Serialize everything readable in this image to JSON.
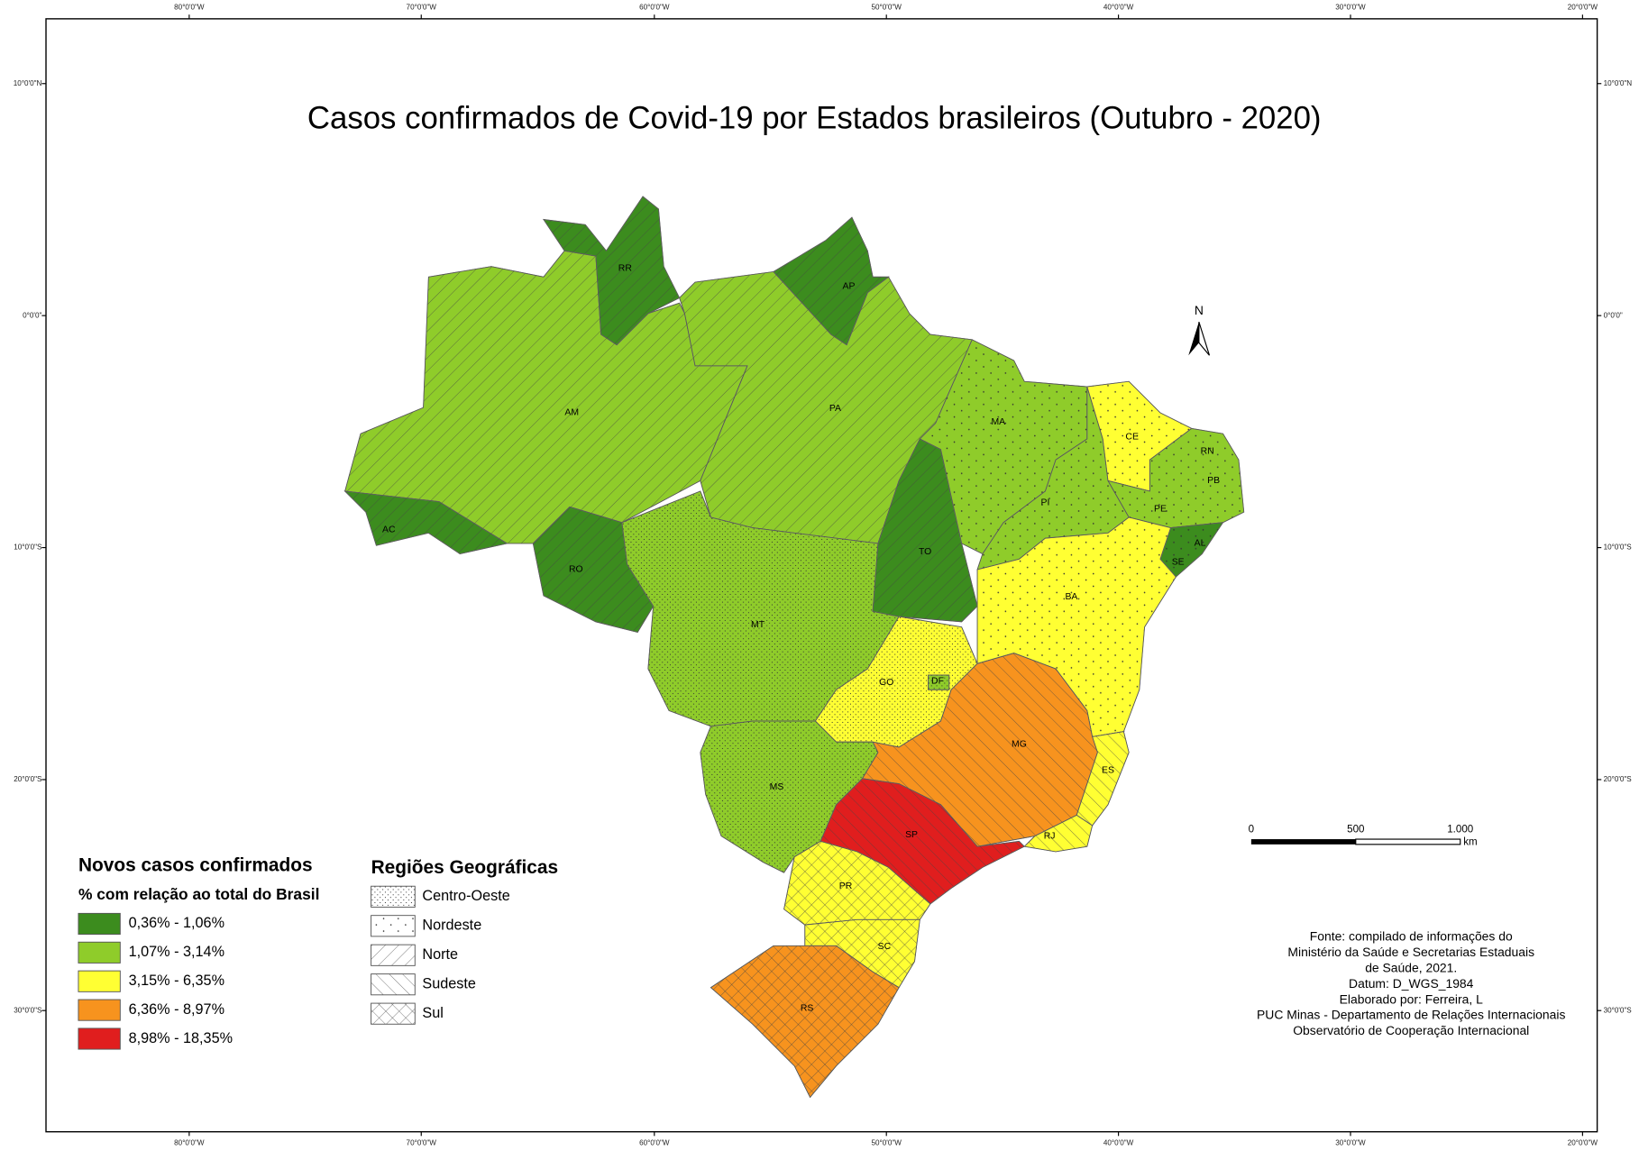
{
  "title": "Casos confirmados de Covid-19 por Estados brasileiros (Outubro - 2020)",
  "graticule": {
    "top": [
      "80°0'0\"W",
      "70°0'0\"W",
      "60°0'0\"W",
      "50°0'0\"W",
      "40°0'0\"W",
      "30°0'0\"W",
      "20°0'0\"W"
    ],
    "bottom": [
      "80°0'0\"W",
      "70°0'0\"W",
      "60°0'0\"W",
      "50°0'0\"W",
      "40°0'0\"W",
      "30°0'0\"W",
      "20°0'0\"W"
    ],
    "left": [
      "10°0'0\"N",
      "0°0'0\"",
      "10°0'0\"S",
      "20°0'0\"S",
      "30°0'0\"S"
    ],
    "right": [
      "10°0'0\"N",
      "0°0'0\"",
      "10°0'0\"S",
      "20°0'0\"S",
      "30°0'0\"S"
    ]
  },
  "states": [
    "RR",
    "AP",
    "AM",
    "PA",
    "MA",
    "CE",
    "RN",
    "PB",
    "PE",
    "PI",
    "AL",
    "SE",
    "AC",
    "RO",
    "TO",
    "MT",
    "BA",
    "GO",
    "DF",
    "MG",
    "ES",
    "MS",
    "SP",
    "RJ",
    "PR",
    "SC",
    "RS"
  ],
  "north": "N",
  "scale_bar": {
    "labels": [
      "0",
      "500",
      "1.000"
    ],
    "unit": "km"
  },
  "legend": {
    "title": "Novos casos confirmados",
    "subtitle": "% com relação ao total do Brasil",
    "items": [
      "0,36% - 1,06%",
      "1,07% - 3,14%",
      "3,15% - 6,35%",
      "6,36% - 8,97%",
      "8,98% - 18,35%"
    ]
  },
  "regions_legend": {
    "title": "Regiões Geográficas",
    "items": [
      "Centro-Oeste",
      "Nordeste",
      "Norte",
      "Sudeste",
      "Sul"
    ]
  },
  "source": [
    "Fonte: compilado de informações do",
    "Ministério da Saúde e Secretarias Estaduais",
    "de Saúde, 2021.",
    "Datum: D_WGS_1984",
    "Elaborado por: Ferreira, L",
    "PUC Minas - Departamento de Relações Internacionais",
    "Observatório de Cooperação Internacional"
  ]
}
